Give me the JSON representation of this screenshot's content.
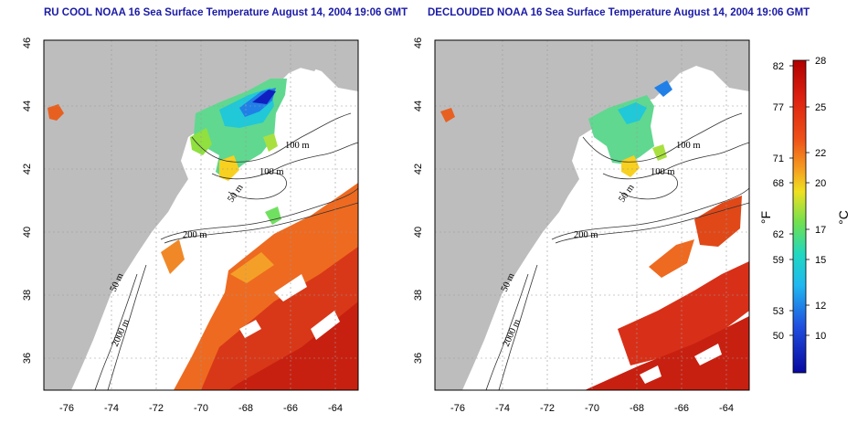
{
  "panels": [
    {
      "id": "left",
      "title": "RU COOL NOAA 16 Sea Surface Temperature August 14, 2004 19:06 GMT",
      "isobath_labels": [
        "100 m",
        "100 m",
        "50 m",
        "200 m",
        "50 m",
        "2000 m"
      ]
    },
    {
      "id": "right",
      "title": "DECLOUDED NOAA 16 Sea Surface Temperature August 14, 2004 19:06 GMT",
      "isobath_labels": [
        "100 m",
        "100 m",
        "50 m",
        "200 m",
        "50 m",
        "2000 m"
      ]
    }
  ],
  "axes": {
    "x_ticks": [
      "-76",
      "-74",
      "-72",
      "-70",
      "-68",
      "-66",
      "-64"
    ],
    "y_ticks": [
      "46",
      "44",
      "42",
      "40",
      "38",
      "36"
    ],
    "xlim": [
      -77,
      -63
    ],
    "ylim": [
      35,
      46
    ]
  },
  "colorbar": {
    "f_label": "°F",
    "c_label": "°C",
    "f_ticks": [
      "82",
      "77",
      "71",
      "68",
      "62",
      "59",
      "53",
      "50"
    ],
    "c_ticks": [
      "28",
      "25",
      "22",
      "20",
      "17",
      "15",
      "12",
      "10"
    ],
    "range_c": [
      8,
      28
    ],
    "colors": [
      "#c81010",
      "#e03818",
      "#f07020",
      "#f8b020",
      "#e8e020",
      "#80e040",
      "#30d8a8",
      "#20c0e8",
      "#2070e0",
      "#1010c0"
    ]
  },
  "map_colors": {
    "land": "#bdbdbd",
    "ocean_no_data": "#ffffff",
    "grid": "#9a9a9a"
  }
}
